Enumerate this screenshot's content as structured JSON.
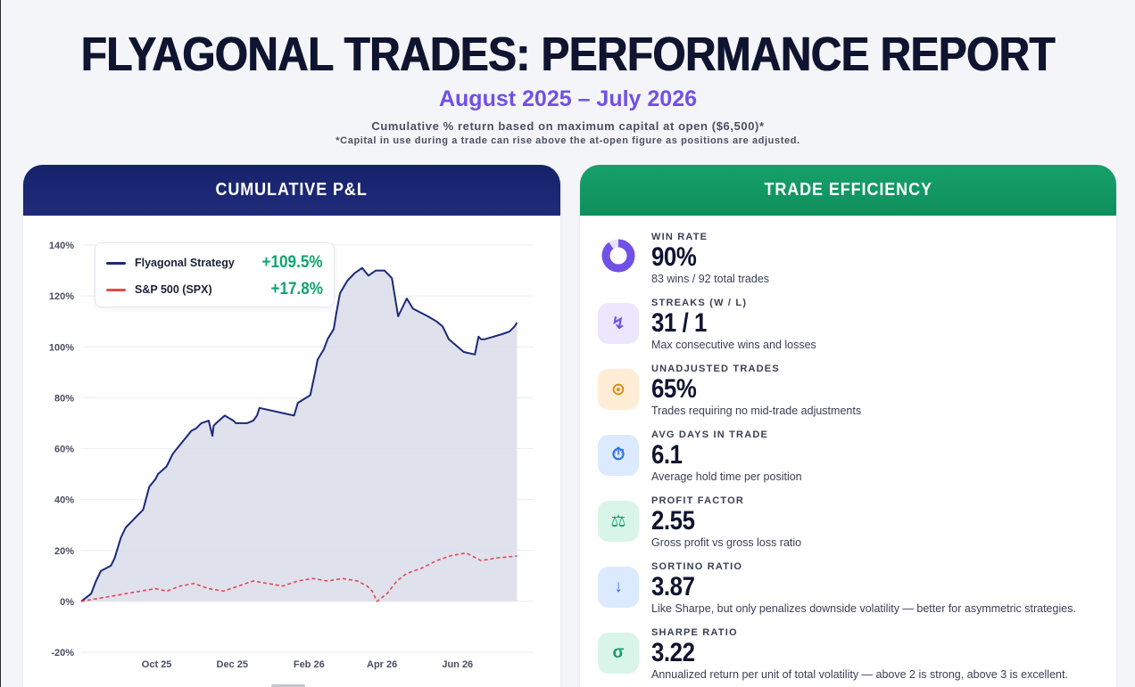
{
  "header": {
    "title": "FLYAGONAL TRADES: PERFORMANCE REPORT",
    "subtitle": "August 2025 – July 2026",
    "description": "Cumulative % return based on maximum capital at open ($6,500)*",
    "note": "*Capital in use during a trade can rise above the at-open figure as positions are adjusted."
  },
  "left_panel": {
    "title": "CUMULATIVE P&L"
  },
  "right_panel": {
    "title": "TRADE EFFICIENCY"
  },
  "legend": {
    "items": [
      {
        "name": "Flyagonal Strategy",
        "value": "+109.5%",
        "color": "#1b2a78",
        "value_color": "#12a36b"
      },
      {
        "name": "S&P 500 (SPX)",
        "value": "+17.8%",
        "color": "#e5484d",
        "value_color": "#12a36b"
      }
    ]
  },
  "chart_data": {
    "type": "line",
    "y_ticks": [
      "140%",
      "120%",
      "100%",
      "80%",
      "60%",
      "40%",
      "20%",
      "0%",
      "-20%"
    ],
    "x_ticks": [
      "Oct 25",
      "Dec 25",
      "Feb 26",
      "Apr 26",
      "Jun 26"
    ],
    "ylim": [
      -20,
      140
    ],
    "x_domain": [
      "2025-08-01",
      "2026-07-31"
    ],
    "grid": true,
    "legend_position": "top-left",
    "series": [
      {
        "name": "Flyagonal Strategy",
        "color": "#1b2a78",
        "fill": "#dcdeeb",
        "x": [
          "2025-08-01",
          "2025-08-09",
          "2025-08-13",
          "2025-08-17",
          "2025-08-25",
          "2025-08-28",
          "2025-09-02",
          "2025-09-06",
          "2025-09-10",
          "2025-09-14",
          "2025-09-20",
          "2025-09-25",
          "2025-09-30",
          "2025-10-02",
          "2025-10-09",
          "2025-10-14",
          "2025-10-19",
          "2025-10-24",
          "2025-10-29",
          "2025-11-02",
          "2025-11-06",
          "2025-11-12",
          "2025-11-15",
          "2025-11-16",
          "2025-11-18",
          "2025-11-25",
          "2025-12-02",
          "2025-12-04",
          "2025-12-09",
          "2025-12-13",
          "2025-12-18",
          "2025-12-21",
          "2025-12-23",
          "2026-01-20",
          "2026-01-23",
          "2026-02-02",
          "2026-02-06",
          "2026-02-08",
          "2026-02-13",
          "2026-02-16",
          "2026-02-21",
          "2026-02-23",
          "2026-02-26",
          "2026-03-04",
          "2026-03-10",
          "2026-03-13",
          "2026-03-16",
          "2026-03-21",
          "2026-03-27",
          "2026-04-03",
          "2026-04-09",
          "2026-04-14",
          "2026-04-21",
          "2026-04-26",
          "2026-05-08",
          "2026-05-15",
          "2026-05-20",
          "2026-05-25",
          "2026-06-06",
          "2026-06-15",
          "2026-06-18",
          "2026-06-20",
          "2026-06-23",
          "2026-07-07",
          "2026-07-13",
          "2026-07-17",
          "2026-07-19"
        ],
        "y": [
          0,
          3,
          8,
          12,
          14,
          17,
          25,
          29,
          31,
          33,
          36,
          45,
          48,
          50,
          53,
          58,
          61,
          64,
          67,
          68,
          70,
          71,
          65,
          69,
          70,
          73,
          71,
          70,
          70,
          70,
          71,
          73,
          76,
          73,
          78,
          81,
          90,
          95,
          99,
          103,
          107,
          113,
          121,
          126,
          129,
          130,
          131,
          128,
          130,
          130,
          127,
          112,
          119,
          115,
          112,
          110,
          108,
          103,
          98,
          97,
          104,
          103,
          103,
          105,
          106,
          108,
          109.5
        ]
      },
      {
        "name": "S&P 500 (SPX)",
        "color": "#e5484d",
        "x": [
          "2025-08-01",
          "2025-08-13",
          "2025-08-25",
          "2025-09-06",
          "2025-09-18",
          "2025-09-30",
          "2025-10-09",
          "2025-10-20",
          "2025-10-31",
          "2025-11-12",
          "2025-11-24",
          "2025-12-06",
          "2025-12-18",
          "2025-12-30",
          "2026-01-11",
          "2026-01-23",
          "2026-02-04",
          "2026-02-16",
          "2026-02-28",
          "2026-03-12",
          "2026-03-20",
          "2026-03-24",
          "2026-03-28",
          "2026-04-05",
          "2026-04-13",
          "2026-04-21",
          "2026-05-03",
          "2026-05-15",
          "2026-05-27",
          "2026-06-08",
          "2026-06-20",
          "2026-07-02",
          "2026-07-19"
        ],
        "y": [
          0,
          1,
          2,
          3,
          4,
          5,
          4,
          6,
          7,
          5,
          4,
          6,
          8,
          7,
          6,
          8,
          9,
          8,
          9,
          8,
          6,
          4,
          0,
          3,
          8,
          11,
          13,
          16,
          18,
          19,
          16,
          17,
          17.8
        ]
      }
    ]
  },
  "metrics": [
    {
      "label": "WIN RATE",
      "value": "90%",
      "desc": "83 wins / 92 total trades",
      "icon": "donut-chart-icon",
      "win_fraction": 0.9,
      "icon_color": "#7150e8",
      "icon_bg": "#ffffff"
    },
    {
      "label": "STREAKS (W / L)",
      "value": "31 / 1",
      "desc": "Max consecutive wins and losses",
      "icon": "lightning-icon",
      "glyph": "↯",
      "icon_color": "#7150e8",
      "icon_bg": "#ece6ff"
    },
    {
      "label": "UNADJUSTED TRADES",
      "value": "65%",
      "desc": "Trades requiring no mid-trade adjustments",
      "icon": "target-icon",
      "glyph": "⊙",
      "icon_color": "#d98a12",
      "icon_bg": "#ffedd5"
    },
    {
      "label": "AVG DAYS IN TRADE",
      "value": "6.1",
      "desc": "Average hold time per position",
      "icon": "stopwatch-icon",
      "glyph": "⏱",
      "icon_color": "#2f6fe0",
      "icon_bg": "#dbeafe"
    },
    {
      "label": "PROFIT FACTOR",
      "value": "2.55",
      "desc": "Gross profit vs gross loss ratio",
      "icon": "scale-icon",
      "glyph": "⚖",
      "icon_color": "#17a06a",
      "icon_bg": "#d9f5e7"
    },
    {
      "label": "SORTINO RATIO",
      "value": "3.87",
      "desc": "Like Sharpe, but only penalizes downside volatility — better for asymmetric strategies.",
      "icon": "arrow-down-icon",
      "glyph": "↓",
      "icon_color": "#2f6fe0",
      "icon_bg": "#dbeafe"
    },
    {
      "label": "SHARPE RATIO",
      "value": "3.22",
      "desc": "Annualized return per unit of total volatility — above 2 is strong, above 3 is excellent.",
      "icon": "sigma-icon",
      "glyph": "σ",
      "icon_color": "#17a06a",
      "icon_bg": "#d9f5e7"
    }
  ]
}
